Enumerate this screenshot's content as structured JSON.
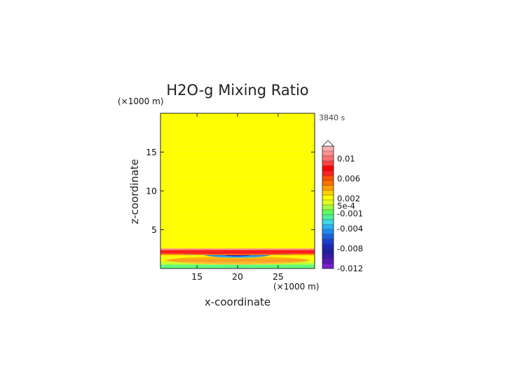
{
  "chart_data": {
    "type": "heatmap",
    "title": "H2O-g Mixing Ratio",
    "time_label": "3840 s",
    "xlabel": "x-coordinate",
    "ylabel": "z-coordinate",
    "x_unit": "(×1000 m)",
    "y_unit": "(×1000 m)",
    "xlim": [
      10.5,
      29.5
    ],
    "ylim": [
      0,
      20
    ],
    "x_ticks": [
      15,
      20,
      25
    ],
    "y_ticks": [
      5,
      10,
      15
    ],
    "colorbar": {
      "labels": [
        {
          "value": 0.01,
          "text": "0.01"
        },
        {
          "value": 0.006,
          "text": "0.006"
        },
        {
          "value": 0.002,
          "text": "0.002"
        },
        {
          "value": 0.0005,
          "text": "5e-4"
        },
        {
          "value": -0.001,
          "text": "-0.001"
        },
        {
          "value": -0.004,
          "text": "-0.004"
        },
        {
          "value": -0.008,
          "text": "-0.008"
        },
        {
          "value": -0.012,
          "text": "-0.012"
        }
      ],
      "colors_bottom_to_top": [
        "#7a1fd0",
        "#5a18b8",
        "#3a1aa8",
        "#2020a0",
        "#1a2ab8",
        "#1a40d0",
        "#1a60e0",
        "#1e88f0",
        "#29b0f5",
        "#40d8e8",
        "#50f0a0",
        "#60ff60",
        "#a0ff40",
        "#e0ff20",
        "#ffff00",
        "#ffd000",
        "#ffa000",
        "#ff7000",
        "#ff5000",
        "#ff2020",
        "#ff0000",
        "#ff4040",
        "#ff7070",
        "#ff9090",
        "#ffb0b0"
      ],
      "extend_max": true
    },
    "field": {
      "background_value": 0.0,
      "background_color": "#ffff00",
      "features": [
        {
          "name": "surface-layer",
          "z": [
            0,
            0.5
          ],
          "color": "#60ff80"
        },
        {
          "name": "moist-lens",
          "z": [
            0.5,
            1.6
          ],
          "x": [
            11,
            29
          ],
          "color": "#ffa020"
        },
        {
          "name": "dry-core",
          "z": [
            1.2,
            1.9
          ],
          "x": [
            16,
            24
          ],
          "color": "#1e88f0"
        },
        {
          "name": "upper-moist-band",
          "z": [
            1.9,
            2.4
          ],
          "color": "#ff2020"
        }
      ]
    }
  }
}
